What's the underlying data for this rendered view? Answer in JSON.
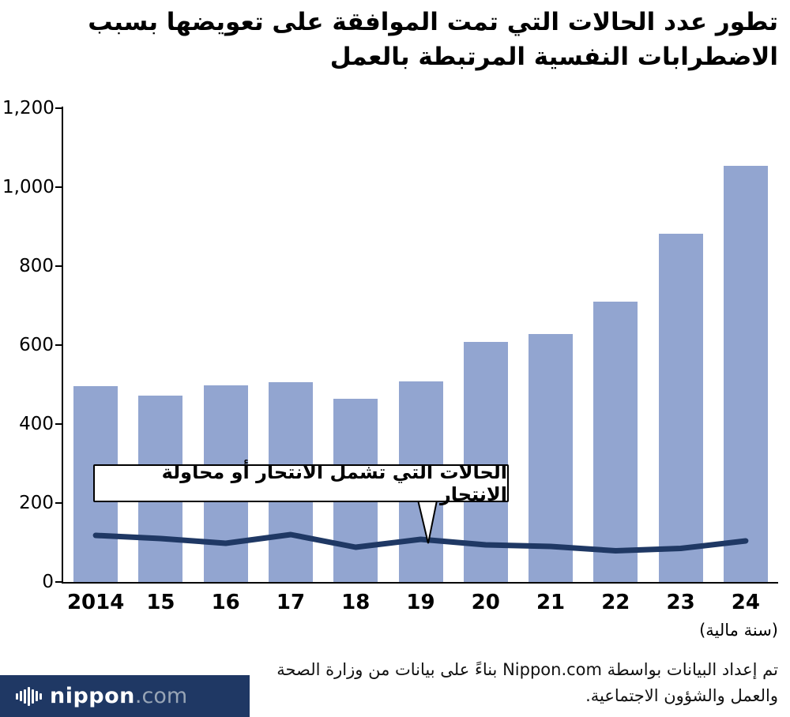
{
  "title": {
    "line1": "تطور عدد الحالات التي تمت الموافقة على تعويضها بسبب",
    "line2": "الاضطرابات النفسية المرتبطة بالعمل"
  },
  "chart_data": {
    "type": "bar",
    "categories": [
      "2014",
      "15",
      "16",
      "17",
      "18",
      "19",
      "20",
      "21",
      "22",
      "23",
      "24"
    ],
    "series": [
      {
        "name": "الحالات التي تمت الموافقة على تعويضها",
        "type": "bar",
        "color": "#92A5D0",
        "values": [
          497,
          472,
          498,
          506,
          465,
          509,
          608,
          629,
          710,
          883,
          1055
        ]
      },
      {
        "name": "الحالات التي تشمل الانتحار أو محاولة الانتحار",
        "type": "line",
        "color": "#1F3864",
        "values": [
          118,
          110,
          98,
          120,
          88,
          108,
          94,
          90,
          79,
          85,
          104
        ]
      }
    ],
    "ylim": [
      0,
      1200
    ],
    "ytick_step": 200,
    "yticks": [
      "0",
      "200",
      "400",
      "600",
      "800",
      "1,000",
      "1,200"
    ],
    "grid": false,
    "legend": "none",
    "annotation": "الحالات التي تشمل الانتحار أو محاولة الانتحار",
    "xlabel_note": "(سنة مالية)"
  },
  "footer": {
    "source_line1": "تم إعداد البيانات بواسطة Nippon.com بناءً على بيانات من وزارة الصحة",
    "source_line2": "والعمل والشؤون الاجتماعية.",
    "logo_main": "nippon",
    "logo_suffix": ".com"
  },
  "colors": {
    "bar": "#92A5D0",
    "line": "#1F3864",
    "footer_bg": "#1F3864"
  }
}
